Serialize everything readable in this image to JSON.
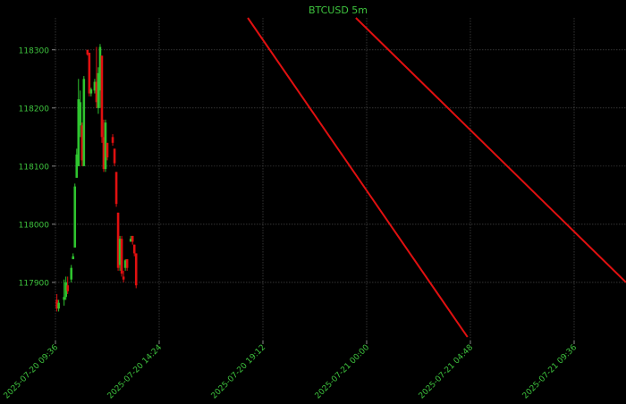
{
  "chart_data": {
    "type": "candlestick",
    "title": "BTCUSD 5m",
    "xlabel": "",
    "ylabel": "",
    "grid": true,
    "x_range": [
      "2025-07-20 09:36",
      "2025-07-21 12:00"
    ],
    "ylim": [
      117800,
      118355
    ],
    "y_ticks": [
      117900,
      118000,
      118100,
      118200,
      118300
    ],
    "x_ticks": [
      {
        "t": "2025-07-20 09:36",
        "label": "2025-07-20 09:36"
      },
      {
        "t": "2025-07-20 14:24",
        "label": "2025-07-20 14:24"
      },
      {
        "t": "2025-07-20 19:12",
        "label": "2025-07-20 19:12"
      },
      {
        "t": "2025-07-21 00:00",
        "label": "2025-07-21 00:00"
      },
      {
        "t": "2025-07-21 04:48",
        "label": "2025-07-21 04:48"
      },
      {
        "t": "2025-07-21 09:36",
        "label": "2025-07-21 09:36"
      }
    ],
    "colors": {
      "background": "#000000",
      "text": "#3ec43e",
      "grid": "#555555",
      "up": "#2fc42f",
      "down": "#e01010",
      "trendline": "#e01010"
    },
    "candles": [
      {
        "t": "2025-07-20 09:40",
        "o": 117870,
        "h": 117880,
        "l": 117850,
        "c": 117855
      },
      {
        "t": "2025-07-20 09:45",
        "o": 117855,
        "h": 117870,
        "l": 117850,
        "c": 117865
      },
      {
        "t": "2025-07-20 10:00",
        "o": 117870,
        "h": 117905,
        "l": 117860,
        "c": 117875
      },
      {
        "t": "2025-07-20 10:05",
        "o": 117875,
        "h": 117910,
        "l": 117870,
        "c": 117900
      },
      {
        "t": "2025-07-20 10:10",
        "o": 117895,
        "h": 117910,
        "l": 117880,
        "c": 117885
      },
      {
        "t": "2025-07-20 10:20",
        "o": 117905,
        "h": 117930,
        "l": 117900,
        "c": 117925
      },
      {
        "t": "2025-07-20 10:25",
        "o": 117940,
        "h": 117950,
        "l": 117940,
        "c": 117945
      },
      {
        "t": "2025-07-20 10:30",
        "o": 117960,
        "h": 118070,
        "l": 117960,
        "c": 118065
      },
      {
        "t": "2025-07-20 10:35",
        "o": 118080,
        "h": 118130,
        "l": 118080,
        "c": 118120
      },
      {
        "t": "2025-07-20 10:40",
        "o": 118100,
        "h": 118250,
        "l": 118100,
        "c": 118215
      },
      {
        "t": "2025-07-20 10:45",
        "o": 118170,
        "h": 118230,
        "l": 118150,
        "c": 118210
      },
      {
        "t": "2025-07-20 10:50",
        "o": 118170,
        "h": 118175,
        "l": 118100,
        "c": 118110
      },
      {
        "t": "2025-07-20 10:55",
        "o": 118100,
        "h": 118255,
        "l": 118100,
        "c": 118250
      },
      {
        "t": "2025-07-20 11:05",
        "o": 118300,
        "h": 118300,
        "l": 118290,
        "c": 118292
      },
      {
        "t": "2025-07-20 11:10",
        "o": 118295,
        "h": 118295,
        "l": 118220,
        "c": 118225
      },
      {
        "t": "2025-07-20 11:15",
        "o": 118225,
        "h": 118235,
        "l": 118220,
        "c": 118232
      },
      {
        "t": "2025-07-20 11:25",
        "o": 118230,
        "h": 118250,
        "l": 118225,
        "c": 118245
      },
      {
        "t": "2025-07-20 11:30",
        "o": 118245,
        "h": 118305,
        "l": 118200,
        "c": 118210
      },
      {
        "t": "2025-07-20 11:35",
        "o": 118200,
        "h": 118270,
        "l": 118190,
        "c": 118260
      },
      {
        "t": "2025-07-20 11:40",
        "o": 118230,
        "h": 118310,
        "l": 118200,
        "c": 118305
      },
      {
        "t": "2025-07-20 11:45",
        "o": 118290,
        "h": 118290,
        "l": 118140,
        "c": 118150
      },
      {
        "t": "2025-07-20 11:50",
        "o": 118150,
        "h": 118180,
        "l": 118090,
        "c": 118095
      },
      {
        "t": "2025-07-20 11:55",
        "o": 118095,
        "h": 118180,
        "l": 118090,
        "c": 118175
      },
      {
        "t": "2025-07-20 12:00",
        "o": 118140,
        "h": 118140,
        "l": 118110,
        "c": 118115
      },
      {
        "t": "2025-07-20 12:15",
        "o": 118150,
        "h": 118155,
        "l": 118135,
        "c": 118140
      },
      {
        "t": "2025-07-20 12:20",
        "o": 118130,
        "h": 118130,
        "l": 118100,
        "c": 118105
      },
      {
        "t": "2025-07-20 12:25",
        "o": 118090,
        "h": 118090,
        "l": 118030,
        "c": 118035
      },
      {
        "t": "2025-07-20 12:30",
        "o": 118020,
        "h": 118020,
        "l": 117920,
        "c": 117925
      },
      {
        "t": "2025-07-20 12:35",
        "o": 117930,
        "h": 117980,
        "l": 117920,
        "c": 117975
      },
      {
        "t": "2025-07-20 12:40",
        "o": 117975,
        "h": 117980,
        "l": 117910,
        "c": 117915
      },
      {
        "t": "2025-07-20 12:45",
        "o": 117910,
        "h": 117920,
        "l": 117900,
        "c": 117905
      },
      {
        "t": "2025-07-20 12:50",
        "o": 117925,
        "h": 117940,
        "l": 117920,
        "c": 117938
      },
      {
        "t": "2025-07-20 12:55",
        "o": 117940,
        "h": 117940,
        "l": 117920,
        "c": 117925
      },
      {
        "t": "2025-07-20 13:05",
        "o": 117970,
        "h": 117980,
        "l": 117970,
        "c": 117975
      },
      {
        "t": "2025-07-20 13:10",
        "o": 117980,
        "h": 117980,
        "l": 117965,
        "c": 117970
      },
      {
        "t": "2025-07-20 13:15",
        "o": 117965,
        "h": 117965,
        "l": 117945,
        "c": 117950
      },
      {
        "t": "2025-07-20 13:20",
        "o": 117950,
        "h": 117950,
        "l": 117890,
        "c": 117895
      }
    ],
    "trendlines": [
      {
        "from": {
          "t": "2025-07-20 18:30",
          "p": 118355
        },
        "to": {
          "t": "2025-07-21 04:40",
          "p": 117806
        }
      },
      {
        "from": {
          "t": "2025-07-20 23:30",
          "p": 118355
        },
        "to": {
          "t": "2025-07-21 12:00",
          "p": 117900
        }
      }
    ]
  }
}
